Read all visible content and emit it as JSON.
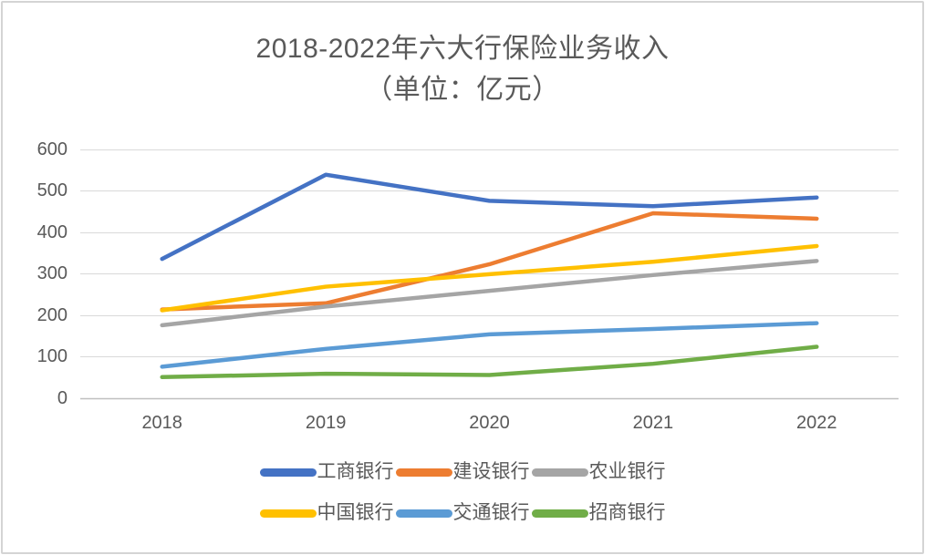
{
  "title": {
    "line1": "2018-2022年六大行保险业务收入",
    "line2": "（单位：亿元）"
  },
  "chart_data": {
    "type": "line",
    "title": "2018-2022年六大行保险业务收入",
    "subtitle": "（单位：亿元）",
    "unit": "亿元",
    "categories": [
      "2018",
      "2019",
      "2020",
      "2021",
      "2022"
    ],
    "series": [
      {
        "name": "工商银行",
        "color": "#4472C4",
        "values": [
          335,
          538,
          475,
          462,
          483
        ]
      },
      {
        "name": "建设银行",
        "color": "#ED7D31",
        "values": [
          213,
          228,
          322,
          445,
          432
        ]
      },
      {
        "name": "农业银行",
        "color": "#A5A5A5",
        "values": [
          175,
          220,
          258,
          296,
          330
        ]
      },
      {
        "name": "中国银行",
        "color": "#FFC000",
        "values": [
          211,
          268,
          298,
          328,
          366
        ]
      },
      {
        "name": "交通银行",
        "color": "#5B9BD5",
        "values": [
          75,
          118,
          153,
          166,
          180
        ]
      },
      {
        "name": "招商银行",
        "color": "#70AD47",
        "values": [
          50,
          58,
          55,
          82,
          123
        ]
      }
    ],
    "ylim": [
      0,
      600
    ],
    "y_ticks": [
      600,
      500,
      400,
      300,
      200,
      100,
      0
    ],
    "grid": true,
    "legend_position": "bottom",
    "legend_rows": 2,
    "line_width": 4.5
  },
  "colors": {
    "text": "#595959",
    "gridline": "#D9D9D9",
    "axis_line": "#BFBFBF",
    "background": "#FFFFFF",
    "frame_border": "#D4D4D4"
  }
}
